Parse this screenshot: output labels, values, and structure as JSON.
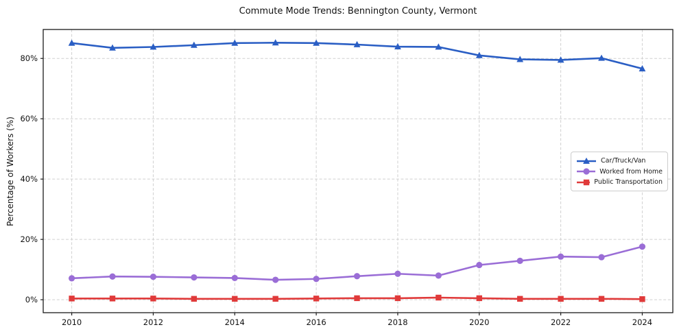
{
  "page": {
    "background": "#ffffff"
  },
  "chart_data": {
    "type": "line",
    "title": "Commute Mode Trends: Bennington County, Vermont",
    "xlabel": "",
    "ylabel": "Percentage of Workers (%)",
    "x": [
      2010,
      2011,
      2012,
      2013,
      2014,
      2015,
      2016,
      2017,
      2018,
      2019,
      2020,
      2021,
      2022,
      2023,
      2024
    ],
    "series": [
      {
        "name": "Car/Truck/Van",
        "marker": "triangle",
        "color": "#2a5ec4",
        "values": [
          85.1,
          83.5,
          83.8,
          84.4,
          85.1,
          85.2,
          85.1,
          84.6,
          83.9,
          83.8,
          81.0,
          79.7,
          79.5,
          80.1,
          76.6
        ]
      },
      {
        "name": "Worked from Home",
        "marker": "circle",
        "color": "#9a6dd6",
        "values": [
          7.1,
          7.7,
          7.6,
          7.4,
          7.2,
          6.6,
          6.9,
          7.8,
          8.6,
          8.0,
          11.5,
          12.9,
          14.3,
          14.1,
          17.6
        ]
      },
      {
        "name": "Public Transportation",
        "marker": "square",
        "color": "#e03a3a",
        "values": [
          0.4,
          0.4,
          0.4,
          0.3,
          0.3,
          0.3,
          0.4,
          0.5,
          0.5,
          0.7,
          0.5,
          0.3,
          0.3,
          0.3,
          0.2
        ]
      }
    ],
    "xticks": [
      {
        "value": 2010,
        "label": "2010"
      },
      {
        "value": 2012,
        "label": "2012"
      },
      {
        "value": 2014,
        "label": "2014"
      },
      {
        "value": 2016,
        "label": "2016"
      },
      {
        "value": 2018,
        "label": "2018"
      },
      {
        "value": 2020,
        "label": "2020"
      },
      {
        "value": 2022,
        "label": "2022"
      },
      {
        "value": 2024,
        "label": "2024"
      }
    ],
    "yticks": [
      {
        "value": 0,
        "label": "0%"
      },
      {
        "value": 20,
        "label": "20%"
      },
      {
        "value": 40,
        "label": "40%"
      },
      {
        "value": 60,
        "label": "60%"
      },
      {
        "value": 80,
        "label": "80%"
      }
    ],
    "xlim": [
      2009.3,
      2024.75
    ],
    "ylim": [
      -4.3,
      89.6
    ],
    "grid": true,
    "grid_style": "dashed",
    "legend_position": "center-right"
  },
  "colors": {
    "grid": "#d0d0d0",
    "spine": "#1a1a1a",
    "text": "#111111",
    "legend_border": "#cccccc"
  }
}
